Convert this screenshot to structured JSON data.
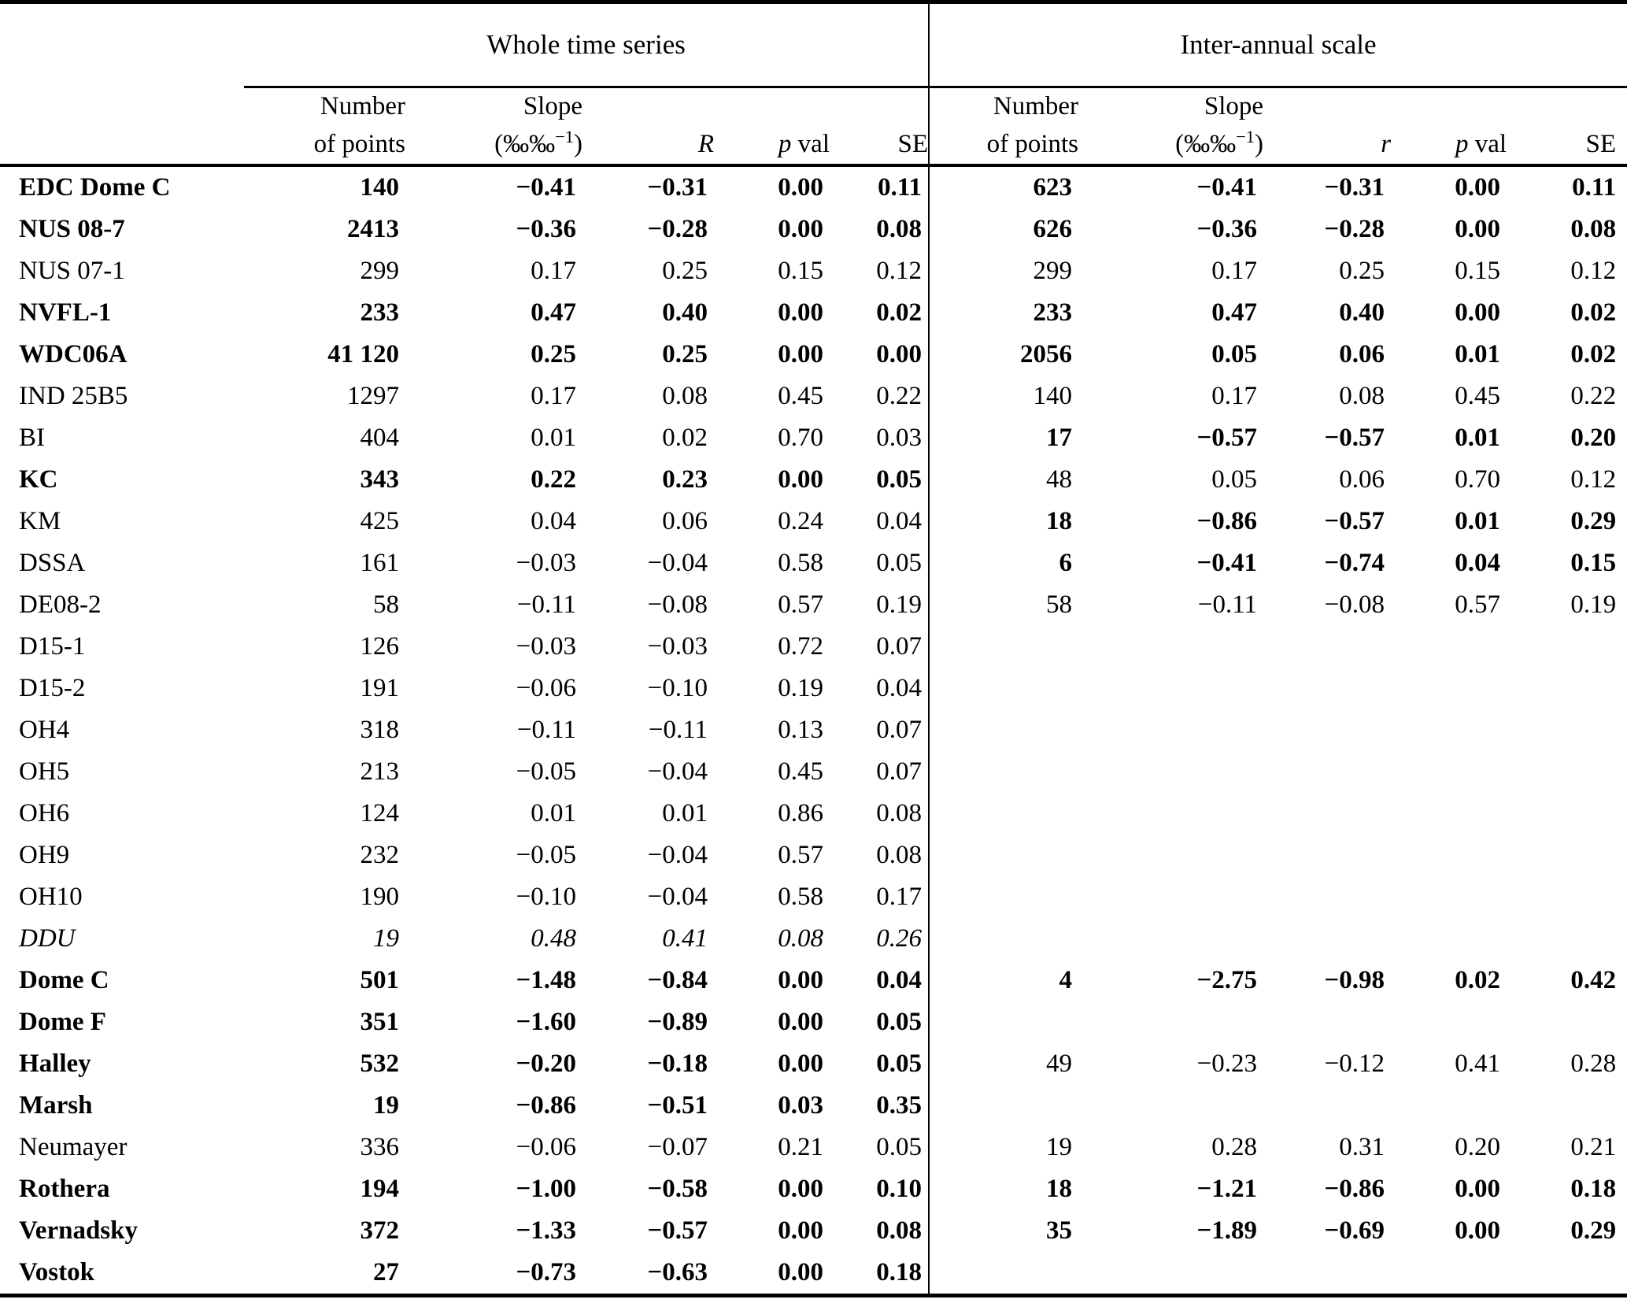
{
  "table": {
    "group_headers": {
      "whole": "Whole time series",
      "inter": "Inter-annual scale"
    },
    "col_headers": {
      "number_l1": "Number",
      "number_l2": "of points",
      "slope_l1": "Slope",
      "slope_unit_pre": "(‰‰",
      "slope_unit_sup": "−1",
      "slope_unit_post": ")",
      "corr_whole": "R",
      "corr_inter": "r",
      "p_label": "p",
      "val_label": "val",
      "se_label": "SE"
    },
    "rows": [
      {
        "name": "EDC Dome C",
        "name_style": "bold",
        "whole": [
          "140",
          "−0.41",
          "−0.31",
          "0.00",
          "0.11"
        ],
        "whole_style": "bold",
        "inter": [
          "623",
          "−0.41",
          "−0.31",
          "0.00",
          "0.11"
        ],
        "inter_style": "bold"
      },
      {
        "name": "NUS 08-7",
        "name_style": "bold",
        "whole": [
          "2413",
          "−0.36",
          "−0.28",
          "0.00",
          "0.08"
        ],
        "whole_style": "bold",
        "inter": [
          "626",
          "−0.36",
          "−0.28",
          "0.00",
          "0.08"
        ],
        "inter_style": "bold"
      },
      {
        "name": "NUS 07-1",
        "name_style": "normal",
        "whole": [
          "299",
          "0.17",
          "0.25",
          "0.15",
          "0.12"
        ],
        "whole_style": "normal",
        "inter": [
          "299",
          "0.17",
          "0.25",
          "0.15",
          "0.12"
        ],
        "inter_style": "normal"
      },
      {
        "name": "NVFL-1",
        "name_style": "bold",
        "whole": [
          "233",
          "0.47",
          "0.40",
          "0.00",
          "0.02"
        ],
        "whole_style": "bold",
        "inter": [
          "233",
          "0.47",
          "0.40",
          "0.00",
          "0.02"
        ],
        "inter_style": "bold"
      },
      {
        "name": "WDC06A",
        "name_style": "bold",
        "whole": [
          "41 120",
          "0.25",
          "0.25",
          "0.00",
          "0.00"
        ],
        "whole_style": "bold",
        "inter": [
          "2056",
          "0.05",
          "0.06",
          "0.01",
          "0.02"
        ],
        "inter_style": "bold"
      },
      {
        "name": "IND 25B5",
        "name_style": "normal",
        "whole": [
          "1297",
          "0.17",
          "0.08",
          "0.45",
          "0.22"
        ],
        "whole_style": "normal",
        "inter": [
          "140",
          "0.17",
          "0.08",
          "0.45",
          "0.22"
        ],
        "inter_style": "normal"
      },
      {
        "name": "BI",
        "name_style": "normal",
        "whole": [
          "404",
          "0.01",
          "0.02",
          "0.70",
          "0.03"
        ],
        "whole_style": "normal",
        "inter": [
          "17",
          "−0.57",
          "−0.57",
          "0.01",
          "0.20"
        ],
        "inter_style": "bold"
      },
      {
        "name": "KC",
        "name_style": "bold",
        "whole": [
          "343",
          "0.22",
          "0.23",
          "0.00",
          "0.05"
        ],
        "whole_style": "bold",
        "inter": [
          "48",
          "0.05",
          "0.06",
          "0.70",
          "0.12"
        ],
        "inter_style": "normal"
      },
      {
        "name": "KM",
        "name_style": "normal",
        "whole": [
          "425",
          "0.04",
          "0.06",
          "0.24",
          "0.04"
        ],
        "whole_style": "normal",
        "inter": [
          "18",
          "−0.86",
          "−0.57",
          "0.01",
          "0.29"
        ],
        "inter_style": "bold"
      },
      {
        "name": "DSSA",
        "name_style": "normal",
        "whole": [
          "161",
          "−0.03",
          "−0.04",
          "0.58",
          "0.05"
        ],
        "whole_style": "normal",
        "inter": [
          "6",
          "−0.41",
          "−0.74",
          "0.04",
          "0.15"
        ],
        "inter_style": "bold"
      },
      {
        "name": "DE08-2",
        "name_style": "normal",
        "whole": [
          "58",
          "−0.11",
          "−0.08",
          "0.57",
          "0.19"
        ],
        "whole_style": "normal",
        "inter": [
          "58",
          "−0.11",
          "−0.08",
          "0.57",
          "0.19"
        ],
        "inter_style": "normal"
      },
      {
        "name": "D15-1",
        "name_style": "normal",
        "whole": [
          "126",
          "−0.03",
          "−0.03",
          "0.72",
          "0.07"
        ],
        "whole_style": "normal",
        "inter": [
          "",
          "",
          "",
          "",
          ""
        ],
        "inter_style": "normal"
      },
      {
        "name": "D15-2",
        "name_style": "normal",
        "whole": [
          "191",
          "−0.06",
          "−0.10",
          "0.19",
          "0.04"
        ],
        "whole_style": "normal",
        "inter": [
          "",
          "",
          "",
          "",
          ""
        ],
        "inter_style": "normal"
      },
      {
        "name": "OH4",
        "name_style": "normal",
        "whole": [
          "318",
          "−0.11",
          "−0.11",
          "0.13",
          "0.07"
        ],
        "whole_style": "normal",
        "inter": [
          "",
          "",
          "",
          "",
          ""
        ],
        "inter_style": "normal"
      },
      {
        "name": "OH5",
        "name_style": "normal",
        "whole": [
          "213",
          "−0.05",
          "−0.04",
          "0.45",
          "0.07"
        ],
        "whole_style": "normal",
        "inter": [
          "",
          "",
          "",
          "",
          ""
        ],
        "inter_style": "normal"
      },
      {
        "name": "OH6",
        "name_style": "normal",
        "whole": [
          "124",
          "0.01",
          "0.01",
          "0.86",
          "0.08"
        ],
        "whole_style": "normal",
        "inter": [
          "",
          "",
          "",
          "",
          ""
        ],
        "inter_style": "normal"
      },
      {
        "name": "OH9",
        "name_style": "normal",
        "whole": [
          "232",
          "−0.05",
          "−0.04",
          "0.57",
          "0.08"
        ],
        "whole_style": "normal",
        "inter": [
          "",
          "",
          "",
          "",
          ""
        ],
        "inter_style": "normal"
      },
      {
        "name": "OH10",
        "name_style": "normal",
        "whole": [
          "190",
          "−0.10",
          "−0.04",
          "0.58",
          "0.17"
        ],
        "whole_style": "normal",
        "inter": [
          "",
          "",
          "",
          "",
          ""
        ],
        "inter_style": "normal"
      },
      {
        "name": "DDU",
        "name_style": "italic",
        "whole": [
          "19",
          "0.48",
          "0.41",
          "0.08",
          "0.26"
        ],
        "whole_style": "italic",
        "inter": [
          "",
          "",
          "",
          "",
          ""
        ],
        "inter_style": "normal"
      },
      {
        "name": "Dome C",
        "name_style": "bold",
        "whole": [
          "501",
          "−1.48",
          "−0.84",
          "0.00",
          "0.04"
        ],
        "whole_style": "bold",
        "inter": [
          "4",
          "−2.75",
          "−0.98",
          "0.02",
          "0.42"
        ],
        "inter_style": "bold"
      },
      {
        "name": "Dome F",
        "name_style": "bold",
        "whole": [
          "351",
          "−1.60",
          "−0.89",
          "0.00",
          "0.05"
        ],
        "whole_style": "bold",
        "inter": [
          "",
          "",
          "",
          "",
          ""
        ],
        "inter_style": "normal"
      },
      {
        "name": "Halley",
        "name_style": "bold",
        "whole": [
          "532",
          "−0.20",
          "−0.18",
          "0.00",
          "0.05"
        ],
        "whole_style": "bold",
        "inter": [
          "49",
          "−0.23",
          "−0.12",
          "0.41",
          "0.28"
        ],
        "inter_style": "normal"
      },
      {
        "name": "Marsh",
        "name_style": "bold",
        "whole": [
          "19",
          "−0.86",
          "−0.51",
          "0.03",
          "0.35"
        ],
        "whole_style": "bold",
        "inter": [
          "",
          "",
          "",
          "",
          ""
        ],
        "inter_style": "normal"
      },
      {
        "name": "Neumayer",
        "name_style": "normal",
        "whole": [
          "336",
          "−0.06",
          "−0.07",
          "0.21",
          "0.05"
        ],
        "whole_style": "normal",
        "inter": [
          "19",
          "0.28",
          "0.31",
          "0.20",
          "0.21"
        ],
        "inter_style": "normal"
      },
      {
        "name": "Rothera",
        "name_style": "bold",
        "whole": [
          "194",
          "−1.00",
          "−0.58",
          "0.00",
          "0.10"
        ],
        "whole_style": "bold",
        "inter": [
          "18",
          "−1.21",
          "−0.86",
          "0.00",
          "0.18"
        ],
        "inter_style": "bold"
      },
      {
        "name": "Vernadsky",
        "name_style": "bold",
        "whole": [
          "372",
          "−1.33",
          "−0.57",
          "0.00",
          "0.08"
        ],
        "whole_style": "bold",
        "inter": [
          "35",
          "−1.89",
          "−0.69",
          "0.00",
          "0.29"
        ],
        "inter_style": "bold"
      },
      {
        "name": "Vostok",
        "name_style": "bold",
        "whole": [
          "27",
          "−0.73",
          "−0.63",
          "0.00",
          "0.18"
        ],
        "whole_style": "bold",
        "inter": [
          "",
          "",
          "",
          "",
          ""
        ],
        "inter_style": "normal"
      }
    ]
  }
}
